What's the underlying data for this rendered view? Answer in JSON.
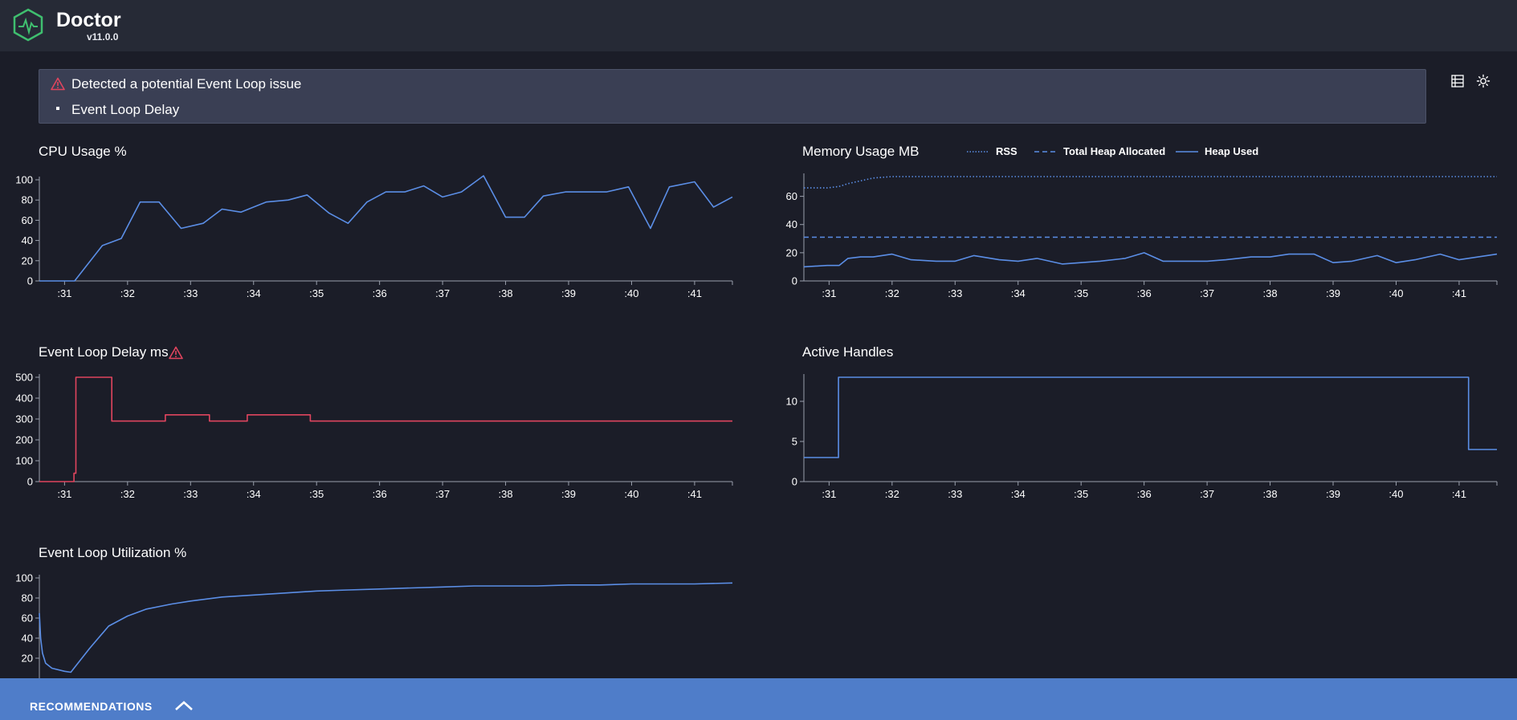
{
  "header": {
    "title": "Doctor",
    "version": "v11.0.0"
  },
  "alert": {
    "title": "Detected a potential Event Loop issue",
    "items": [
      "Event Loop Delay"
    ]
  },
  "toolbar": {
    "icons": [
      "list-icon",
      "theme-toggle-icon"
    ]
  },
  "charts": {
    "cpu": {
      "title": "CPU Usage %",
      "yticks": [
        "100",
        "80",
        "60",
        "40",
        "20",
        "0"
      ],
      "xticks": [
        ":31",
        ":32",
        ":33",
        ":34",
        ":35",
        ":36",
        ":37",
        ":38",
        ":39",
        ":40",
        ":41"
      ]
    },
    "memory": {
      "title": "Memory Usage MB",
      "legend": [
        "RSS",
        "Total Heap Allocated",
        "Heap Used"
      ],
      "yticks": [
        "60",
        "40",
        "20",
        "0"
      ],
      "xticks": [
        ":31",
        ":32",
        ":33",
        ":34",
        ":35",
        ":36",
        ":37",
        ":38",
        ":39",
        ":40",
        ":41"
      ]
    },
    "delay": {
      "title": "Event Loop Delay ms",
      "yticks": [
        "500",
        "400",
        "300",
        "200",
        "100",
        "0"
      ],
      "xticks": [
        ":31",
        ":32",
        ":33",
        ":34",
        ":35",
        ":36",
        ":37",
        ":38",
        ":39",
        ":40",
        ":41"
      ]
    },
    "handles": {
      "title": "Active Handles",
      "yticks": [
        "10",
        "5",
        "0"
      ],
      "xticks": [
        ":31",
        ":32",
        ":33",
        ":34",
        ":35",
        ":36",
        ":37",
        ":38",
        ":39",
        ":40",
        ":41"
      ]
    },
    "elu": {
      "title": "Event Loop Utilization %",
      "yticks": [
        "100",
        "80",
        "60",
        "40",
        "20"
      ]
    }
  },
  "colors": {
    "line": "#5b8ee6",
    "warning": "#e0455e",
    "background": "#1b1d28",
    "header": "#262a36",
    "recommendations": "#4f7dc9"
  },
  "recommendations": {
    "label": "RECOMMENDATIONS"
  },
  "chart_data": [
    {
      "type": "line",
      "title": "CPU Usage %",
      "x": [
        30.6,
        30.97,
        31.16,
        31.6,
        31.9,
        32.2,
        32.5,
        32.85,
        33.2,
        33.5,
        33.8,
        34.2,
        34.55,
        34.85,
        35.2,
        35.5,
        35.8,
        36.1,
        36.4,
        36.7,
        37,
        37.3,
        37.65,
        38,
        38.3,
        38.6,
        38.95,
        39.3,
        39.6,
        39.95,
        40.3,
        40.6,
        41,
        41.3,
        41.6
      ],
      "series": [
        {
          "values": [
            0,
            0,
            0,
            35,
            42,
            78,
            78,
            52,
            57,
            71,
            68,
            78,
            80,
            85,
            67,
            57,
            78,
            88,
            88,
            94,
            83,
            88,
            104,
            63,
            63,
            84,
            88,
            88,
            88,
            93,
            52,
            93,
            98,
            73,
            83
          ]
        }
      ],
      "ylim": [
        0,
        100
      ],
      "x_tick_labels": [
        ":31",
        ":32",
        ":33",
        ":34",
        ":35",
        ":36",
        ":37",
        ":38",
        ":39",
        ":40",
        ":41"
      ]
    },
    {
      "type": "line",
      "title": "Memory Usage MB",
      "x": [
        30.6,
        30.97,
        31.16,
        31.3,
        31.5,
        31.7,
        32,
        32.3,
        32.7,
        33,
        33.3,
        33.7,
        34,
        34.3,
        34.7,
        35,
        35.3,
        35.7,
        36,
        36.3,
        36.7,
        37,
        37.3,
        37.7,
        38,
        38.3,
        38.7,
        39,
        39.3,
        39.7,
        40,
        40.3,
        40.7,
        41,
        41.3,
        41.6
      ],
      "series": [
        {
          "name": "RSS",
          "values": [
            66,
            66,
            67,
            69,
            71,
            73,
            74,
            74,
            74,
            74,
            74,
            74,
            74,
            74,
            74,
            74,
            74,
            74,
            74,
            74,
            74,
            74,
            74,
            74,
            74,
            74,
            74,
            74,
            74,
            74,
            74,
            74,
            74,
            74,
            74,
            74
          ]
        },
        {
          "name": "Total Heap Allocated",
          "values": [
            31,
            31,
            31,
            31,
            31,
            31,
            31,
            31,
            31,
            31,
            31,
            31,
            31,
            31,
            31,
            31,
            31,
            31,
            31,
            31,
            31,
            31,
            31,
            31,
            31,
            31,
            31,
            31,
            31,
            31,
            31,
            31,
            31,
            31,
            31,
            31
          ]
        },
        {
          "name": "Heap Used",
          "values": [
            10,
            11,
            11,
            16,
            17,
            17,
            19,
            15,
            14,
            14,
            18,
            15,
            14,
            16,
            12,
            13,
            14,
            16,
            20,
            14,
            14,
            14,
            15,
            17,
            17,
            19,
            19,
            13,
            14,
            18,
            13,
            15,
            19,
            15,
            17,
            19
          ]
        }
      ],
      "ylim": [
        0,
        74
      ],
      "x_tick_labels": [
        ":31",
        ":32",
        ":33",
        ":34",
        ":35",
        ":36",
        ":37",
        ":38",
        ":39",
        ":40",
        ":41"
      ]
    },
    {
      "type": "line",
      "title": "Event Loop Delay ms",
      "step": true,
      "x": [
        30.6,
        31.15,
        31.18,
        31.22,
        31.75,
        32.1,
        32.6,
        33.3,
        33.9,
        34.9,
        41.6
      ],
      "series": [
        {
          "values": [
            0,
            40,
            500,
            500,
            290,
            290,
            320,
            290,
            320,
            290,
            290
          ]
        }
      ],
      "ylim": [
        0,
        500
      ],
      "x_tick_labels": [
        ":31",
        ":32",
        ":33",
        ":34",
        ":35",
        ":36",
        ":37",
        ":38",
        ":39",
        ":40",
        ":41"
      ]
    },
    {
      "type": "line",
      "title": "Active Handles",
      "step": true,
      "x": [
        30.6,
        31.15,
        41.15,
        41.6
      ],
      "series": [
        {
          "values": [
            3,
            13,
            4,
            4
          ]
        }
      ],
      "ylim": [
        0,
        13
      ],
      "x_tick_labels": [
        ":31",
        ":32",
        ":33",
        ":34",
        ":35",
        ":36",
        ":37",
        ":38",
        ":39",
        ":40",
        ":41"
      ]
    },
    {
      "type": "line",
      "title": "Event Loop Utilization %",
      "x": [
        30.6,
        30.62,
        30.65,
        30.7,
        30.8,
        31.0,
        31.1,
        31.15,
        31.4,
        31.7,
        32.0,
        32.3,
        32.7,
        33.0,
        33.5,
        34.0,
        34.5,
        35.0,
        35.5,
        36.0,
        36.5,
        37.0,
        37.5,
        38.0,
        38.5,
        39.0,
        39.5,
        40.0,
        40.5,
        41.0,
        41.6
      ],
      "series": [
        {
          "values": [
            65,
            40,
            25,
            15,
            10,
            7,
            6,
            10,
            30,
            52,
            62,
            69,
            74,
            77,
            81,
            83,
            85,
            87,
            88,
            89,
            90,
            91,
            92,
            92,
            92,
            93,
            93,
            94,
            94,
            94,
            95
          ]
        }
      ],
      "ylim": [
        0,
        100
      ]
    }
  ]
}
